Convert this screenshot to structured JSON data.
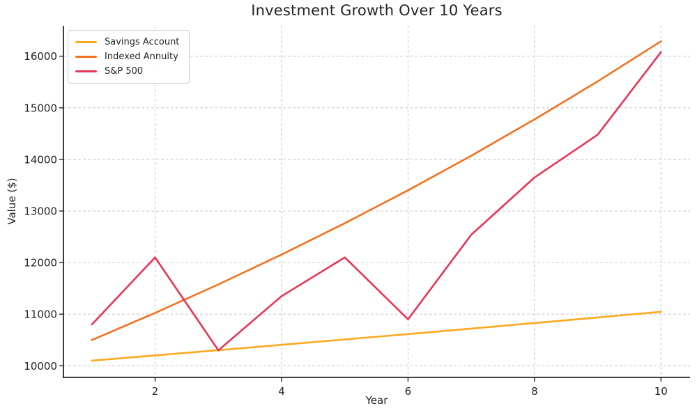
{
  "figure": {
    "background": "#ffffff",
    "text_color": "#242424"
  },
  "chart_data": {
    "type": "line",
    "title": "Investment Growth Over 10 Years",
    "xlabel": "Year",
    "ylabel": "Value ($)",
    "x": [
      1,
      2,
      3,
      4,
      5,
      6,
      7,
      8,
      9,
      10
    ],
    "series": [
      {
        "name": "Savings Account",
        "color": "#FFA81D",
        "values": [
          10100,
          10201,
          10303,
          10406,
          10510,
          10615,
          10721,
          10829,
          10937,
          11046
        ]
      },
      {
        "name": "Indexed Annuity",
        "color": "#F4701D",
        "values": [
          10500,
          11025,
          11576,
          12155,
          12763,
          13401,
          14071,
          14775,
          15513,
          16289
        ]
      },
      {
        "name": "S&P 500",
        "color": "#E93357",
        "values": [
          10800,
          12100,
          10300,
          11350,
          12100,
          10900,
          12540,
          13650,
          14480,
          16080
        ]
      }
    ],
    "x_ticks": [
      2,
      4,
      6,
      8,
      10
    ],
    "y_ticks": [
      10000,
      11000,
      12000,
      13000,
      14000,
      15000,
      16000
    ],
    "xlim": [
      0.55,
      10.46
    ],
    "ylim": [
      9775,
      16590
    ],
    "grid": true,
    "grid_style": "dashed",
    "grid_color": "#cdcdcd",
    "legend": {
      "position": "upper-left",
      "entries": [
        "Savings Account",
        "Indexed Annuity",
        "S&P 500"
      ]
    }
  }
}
